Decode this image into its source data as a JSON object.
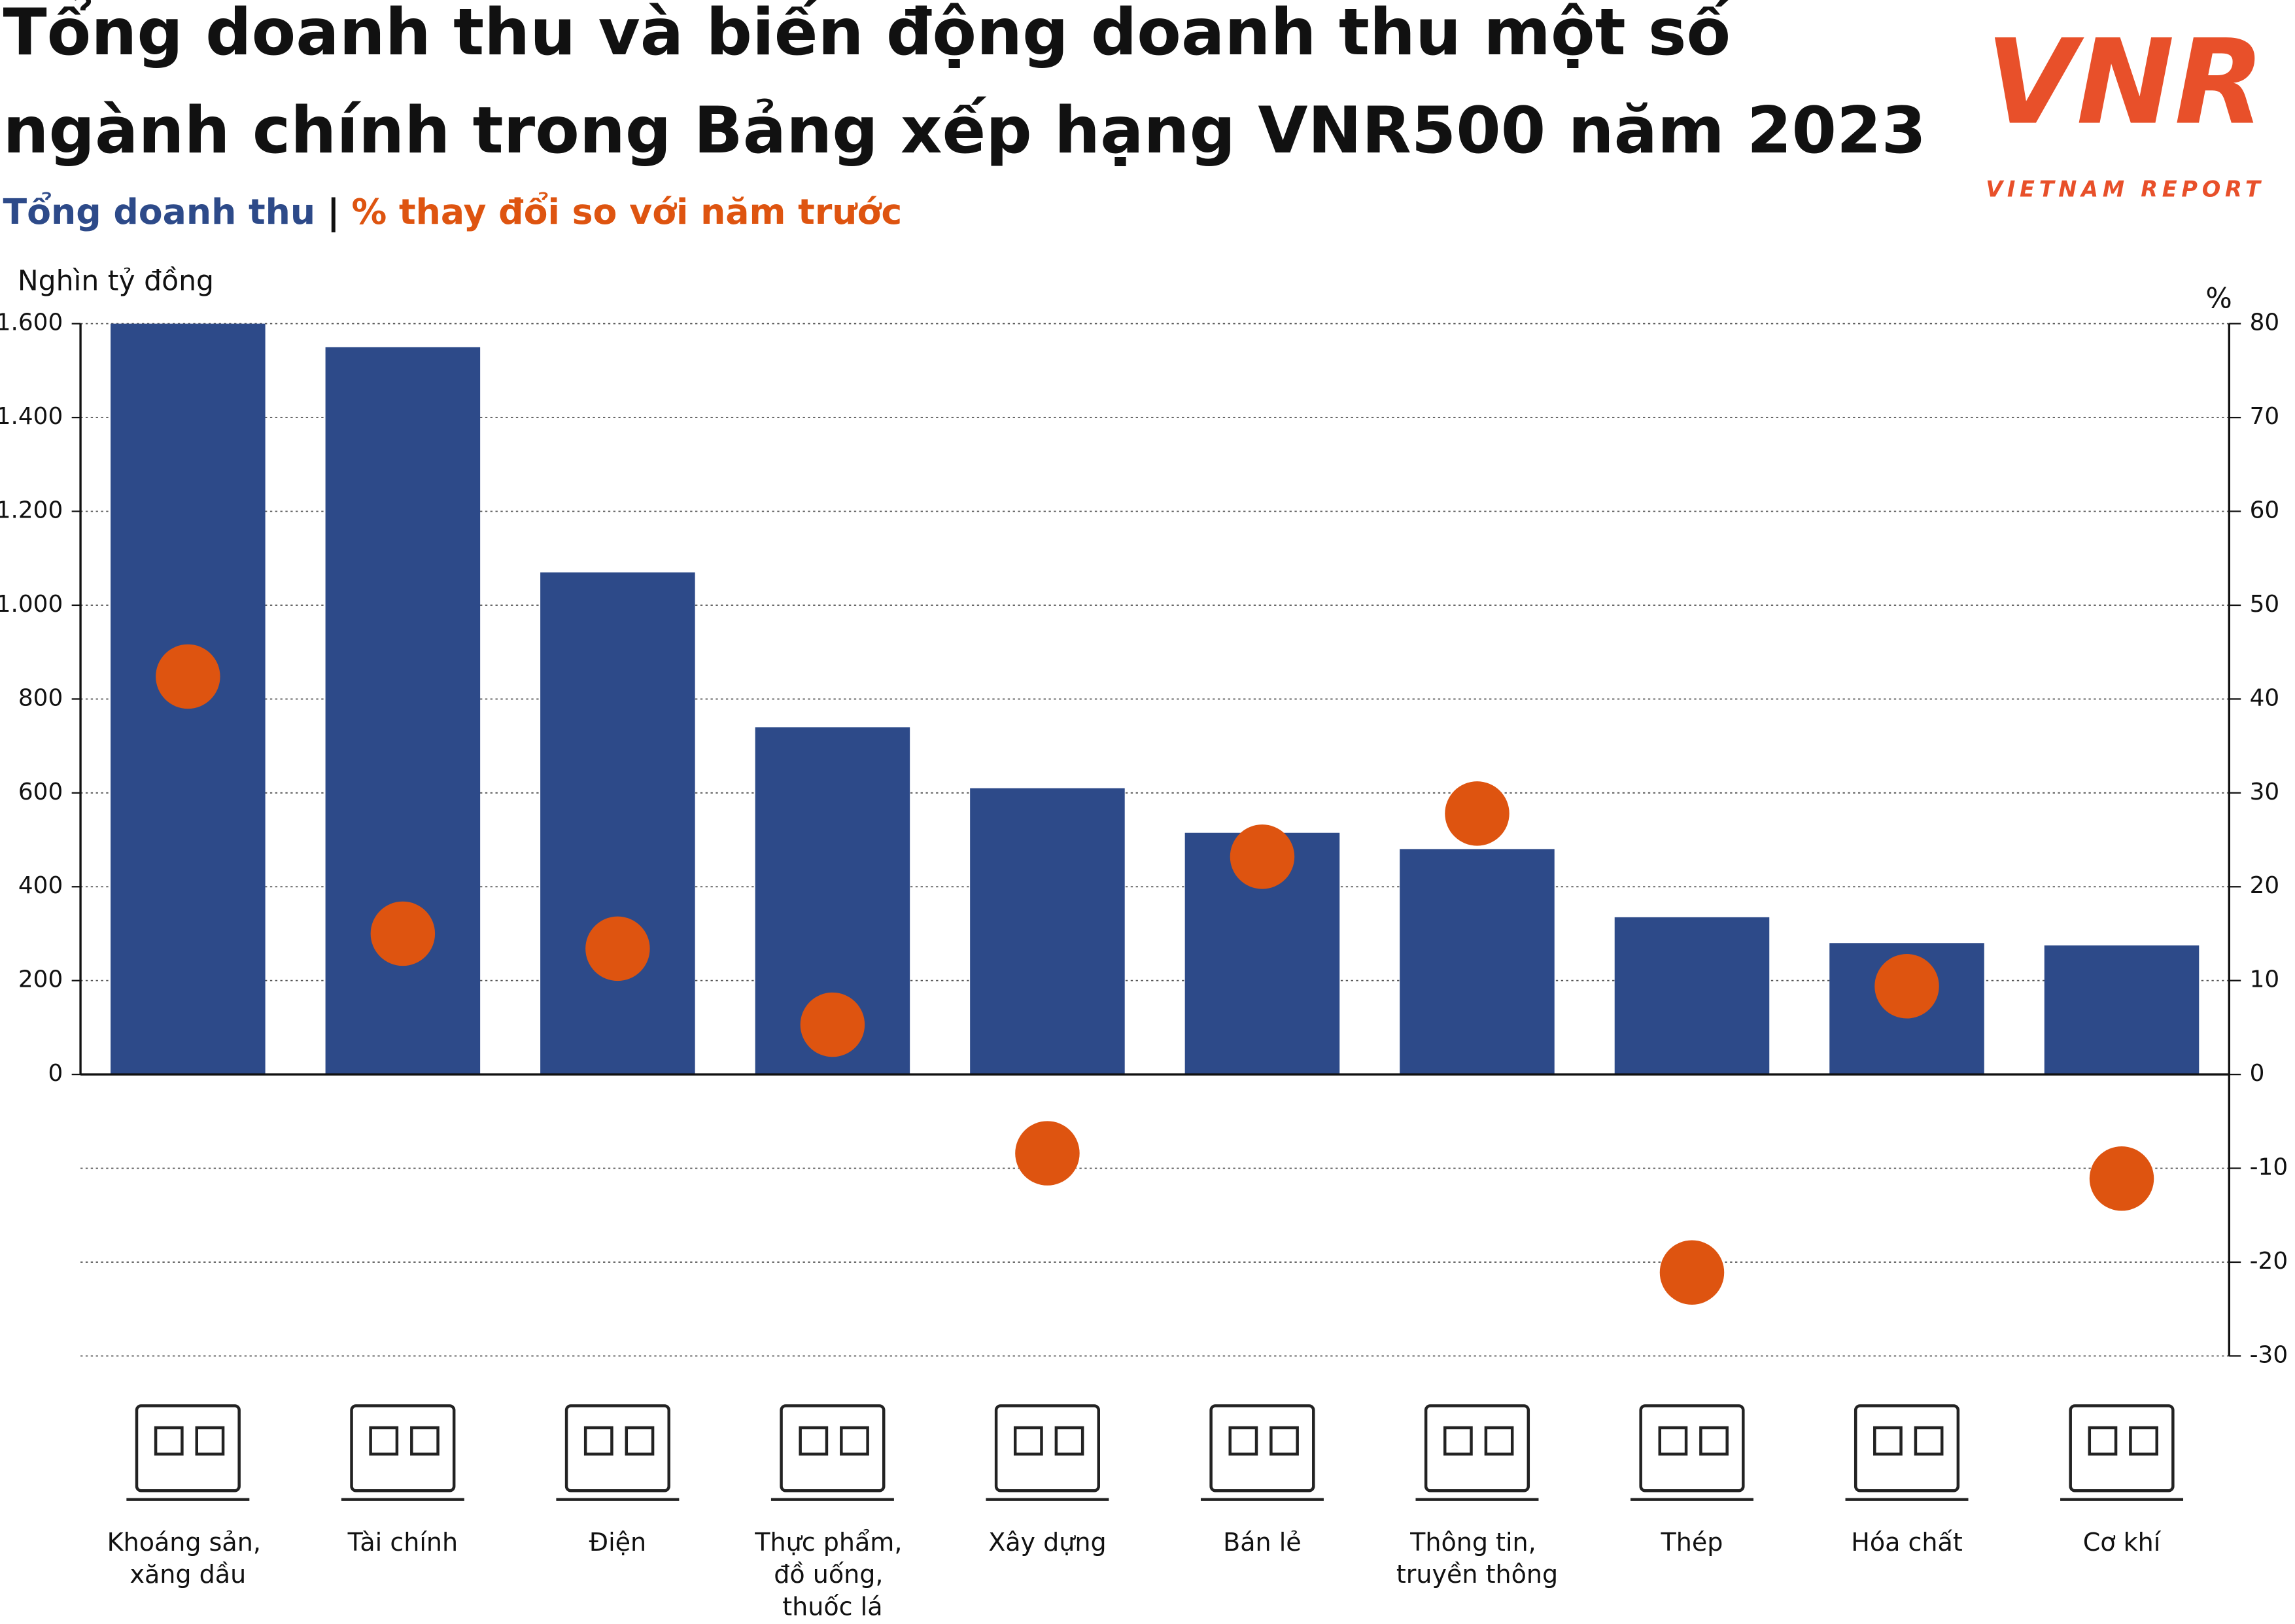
{
  "logo": {
    "mark": "VNR",
    "text": "VIETNAM REPORT"
  },
  "chart_data": {
    "type": "bar",
    "title": [
      "Tổng doanh thu và biến động doanh thu một số",
      "ngành chính trong Bảng xếp hạng VNR500 năm 2023"
    ],
    "subtitle": [
      "Tổng doanh thu",
      "|",
      "% thay đổi so với năm trước"
    ],
    "ylabel": "Nghìn tỷ đồng",
    "y2label": "%",
    "categories": [
      "Khoáng sản,\nxăng dầu",
      "Tài chính",
      "Điện",
      "Thực phẩm,\nđồ uống,\nthuốc lá",
      "Xây dựng",
      "Bán lẻ",
      "Thông tin,\ntruyền thông",
      "Thép",
      "Hóa chất",
      "Cơ khí"
    ],
    "series": [
      {
        "name": "Tổng doanh thu",
        "color": "#2d4a89",
        "type": "bar",
        "values": [
          1600,
          1550,
          1070,
          740,
          610,
          515,
          480,
          335,
          280,
          275
        ]
      },
      {
        "name": "% thay đổi so với năm trước",
        "color": "#de5410",
        "type": "scatter",
        "axis": "y2",
        "values": [
          42.4,
          15.0,
          13.4,
          5.3,
          -8.4,
          23.2,
          27.8,
          -21.1,
          9.4,
          -11.1
        ]
      }
    ],
    "ylim": [
      -600,
      1600
    ],
    "yticks": [
      0,
      {
        "value": 200,
        "label": "200"
      },
      {
        "value": 400,
        "label": "400"
      },
      {
        "value": 600,
        "label": "600"
      },
      {
        "value": 800,
        "label": "800"
      },
      {
        "value": 1000,
        "label": "1.000"
      },
      {
        "value": 1200,
        "label": "1.200"
      },
      {
        "value": 1400,
        "label": "1.400"
      },
      {
        "value": 1600,
        "label": "1.600"
      }
    ],
    "y2lim": [
      -30,
      80
    ],
    "y2ticks": [
      -30,
      -20,
      -10,
      0,
      10,
      20,
      30,
      40,
      50,
      60,
      70,
      80
    ],
    "grid": true
  }
}
